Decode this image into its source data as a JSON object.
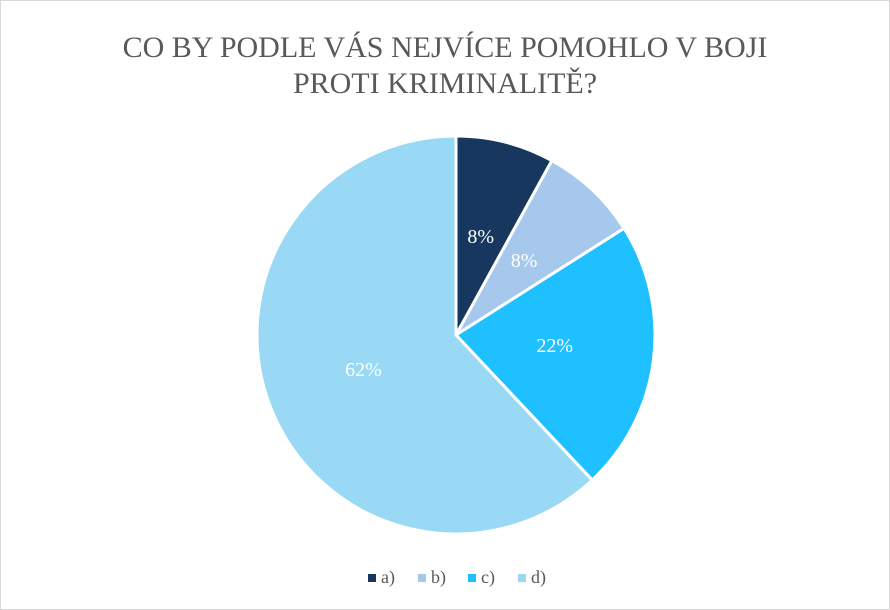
{
  "chart_data": {
    "type": "pie",
    "title": "CO BY PODLE VÁS NEJVÍCE POMOHLO V BOJI PROTI KRIMINALITĚ?",
    "categories": [
      "a)",
      "b)",
      "c)",
      "d)"
    ],
    "values": [
      8,
      8,
      22,
      62
    ],
    "value_labels": [
      "8%",
      "8%",
      "22%",
      "62%"
    ],
    "colors": [
      "#17375e",
      "#a6c8ec",
      "#1ec0ff",
      "#99d9f5"
    ],
    "legend": "bottom"
  }
}
